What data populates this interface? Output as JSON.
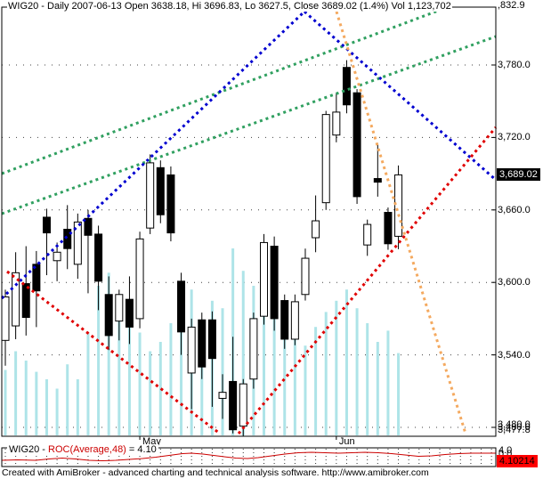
{
  "window": {
    "title": "WIG20 - Daily 2007-06-13 Open 3638.18, Hi 3696.83, Lo 3627.5, Close 3689.02 (1.4%) Vol 1,123,702"
  },
  "footer": "Created with AmiBroker - advanced charting and technical analysis software. http://www.amibroker.com",
  "colors": {
    "up_candle": "#ffffff",
    "down_candle": "#000000",
    "volume": "#aee4e8",
    "grid": "#404040",
    "trend_green": "#30a060",
    "trend_blue": "#0000d0",
    "trend_red": "#e00000",
    "trend_orange": "#f4a95f",
    "close_label_bg": "#000000",
    "close_label_fg": "#ffffff",
    "roc_line": "#cc0000",
    "roc_value_bg": "#ff0000"
  },
  "chart_data": {
    "type": "candlestick",
    "symbol": "WIG20",
    "interval": "Daily",
    "date": "2007-06-13",
    "last_bar": {
      "open": 3638.18,
      "high": 3696.83,
      "low": 3627.5,
      "close": 3689.02,
      "change_pct": "1.4%",
      "volume": "1,123,702"
    },
    "y_axis": {
      "top_label": ",832.9",
      "gridline_prices": [
        3780,
        3720,
        3660,
        3600,
        3540,
        3480
      ],
      "gridline_labels": [
        "3,780.0",
        "3,720.0",
        "3,660.0",
        "3,600.0",
        "3,540.0",
        "3,480.0"
      ],
      "min_label": "3,477.8",
      "close_label": "3,689.02"
    },
    "x_axis": {
      "ticks": [
        {
          "label": "May",
          "bar": 13
        },
        {
          "label": "Jun",
          "bar": 32
        }
      ]
    },
    "candles_ohlc": [
      [
        3552,
        3594,
        3531,
        3588
      ],
      [
        3564,
        3625,
        3553,
        3608
      ],
      [
        3599,
        3630,
        3556,
        3571
      ],
      [
        3615,
        3626,
        3563,
        3593
      ],
      [
        3654,
        3661,
        3606,
        3641
      ],
      [
        3618,
        3633,
        3601,
        3625
      ],
      [
        3644,
        3664,
        3611,
        3628
      ],
      [
        3615,
        3657,
        3603,
        3650
      ],
      [
        3653,
        3660,
        3591,
        3639
      ],
      [
        3640,
        3647,
        3577,
        3601
      ],
      [
        3590,
        3605,
        3544,
        3556
      ],
      [
        3568,
        3594,
        3552,
        3590
      ],
      [
        3586,
        3605,
        3549,
        3563
      ],
      [
        3570,
        3642,
        3562,
        3636
      ],
      [
        3645,
        3706,
        3640,
        3699
      ],
      [
        3695,
        3701,
        3649,
        3656
      ],
      [
        3689,
        3696,
        3634,
        3641
      ],
      [
        3601,
        3608,
        3540,
        3559
      ],
      [
        3525,
        3570,
        3495,
        3563
      ],
      [
        3569,
        3575,
        3520,
        3530
      ],
      [
        3569,
        3576,
        3497,
        3537
      ],
      [
        3504,
        3524,
        3487,
        3509
      ],
      [
        3518,
        3555,
        3475,
        3478
      ],
      [
        3481,
        3520,
        3473,
        3516
      ],
      [
        3520,
        3575,
        3512,
        3570
      ],
      [
        3572,
        3640,
        3565,
        3633
      ],
      [
        3630,
        3638,
        3560,
        3570
      ],
      [
        3585,
        3590,
        3545,
        3553
      ],
      [
        3553,
        3590,
        3548,
        3584
      ],
      [
        3590,
        3628,
        3585,
        3620
      ],
      [
        3637,
        3672,
        3625,
        3651
      ],
      [
        3666,
        3742,
        3660,
        3739
      ],
      [
        3722,
        3757,
        3716,
        3741
      ],
      [
        3778,
        3784,
        3740,
        3747
      ],
      [
        3757,
        3760,
        3665,
        3671
      ],
      [
        3631,
        3652,
        3622,
        3648
      ],
      [
        3686,
        3714,
        3671,
        3683
      ],
      [
        3658,
        3662,
        3627,
        3632
      ],
      [
        3638.18,
        3696.83,
        3627.5,
        3689.02
      ]
    ],
    "volume_rel": [
      0.35,
      0.45,
      0.4,
      0.34,
      0.3,
      0.25,
      0.38,
      0.3,
      0.55,
      0.8,
      0.87,
      0.72,
      0.66,
      0.55,
      0.45,
      0.5,
      0.6,
      0.7,
      0.78,
      0.62,
      0.72,
      0.68,
      1.0,
      0.88,
      0.8,
      0.74,
      0.64,
      0.58,
      0.52,
      0.48,
      0.58,
      0.66,
      0.72,
      0.78,
      0.68,
      0.6,
      0.5,
      0.56,
      0.44
    ],
    "trendlines": [
      {
        "name": "green-channel-upper",
        "color_key": "trend_green",
        "from": [
          2,
          195
        ],
        "to": [
          503,
          8
        ]
      },
      {
        "name": "green-channel-lower",
        "color_key": "trend_green",
        "from": [
          2,
          240
        ],
        "to": [
          557,
          41
        ]
      },
      {
        "name": "blue-rising-support",
        "color_key": "trend_blue",
        "from": [
          2,
          335
        ],
        "to": [
          342,
          13
        ]
      },
      {
        "name": "blue-falling-resistance",
        "color_key": "trend_blue",
        "from": [
          342,
          13
        ],
        "to": [
          557,
          202
        ]
      },
      {
        "name": "red-falling-trendline",
        "color_key": "trend_red",
        "from": [
          8,
          305
        ],
        "to": [
          247,
          487
        ]
      },
      {
        "name": "red-rising-trendline",
        "color_key": "trend_red",
        "from": [
          268,
          487
        ],
        "to": [
          557,
          143
        ]
      },
      {
        "name": "orange-falling-trendline",
        "color_key": "trend_orange",
        "from": [
          378,
          13
        ],
        "to": [
          523,
          487
        ]
      }
    ],
    "roc_panel": {
      "title_symbol": "WIG20 - ",
      "title_formula": "ROC(Average,48)",
      "title_value": " = 4.10",
      "value_label": "4.10214",
      "scale_label_hi": "4.0",
      "scale_label_lo": "0.0",
      "points": [
        [
          2,
          517
        ],
        [
          20,
          516.5
        ],
        [
          40,
          517
        ],
        [
          55,
          515.5
        ],
        [
          70,
          514.5
        ],
        [
          85,
          515.5
        ],
        [
          100,
          517
        ],
        [
          115,
          517.5
        ],
        [
          130,
          517
        ],
        [
          145,
          516
        ],
        [
          160,
          515
        ],
        [
          175,
          513.5
        ],
        [
          190,
          511.5
        ],
        [
          205,
          509.5
        ],
        [
          215,
          509
        ],
        [
          228,
          510
        ],
        [
          240,
          511.5
        ],
        [
          252,
          513
        ],
        [
          265,
          514.5
        ],
        [
          278,
          515
        ],
        [
          290,
          514
        ],
        [
          305,
          512
        ],
        [
          320,
          510
        ],
        [
          335,
          508.5
        ],
        [
          350,
          508
        ],
        [
          365,
          508.5
        ],
        [
          380,
          509
        ],
        [
          395,
          508.5
        ],
        [
          410,
          508
        ],
        [
          425,
          508.5
        ],
        [
          440,
          509.5
        ],
        [
          455,
          511
        ],
        [
          470,
          512.5
        ],
        [
          485,
          512
        ],
        [
          500,
          510.5
        ],
        [
          515,
          509.5
        ],
        [
          530,
          509
        ],
        [
          545,
          509
        ],
        [
          557,
          509
        ]
      ]
    }
  }
}
